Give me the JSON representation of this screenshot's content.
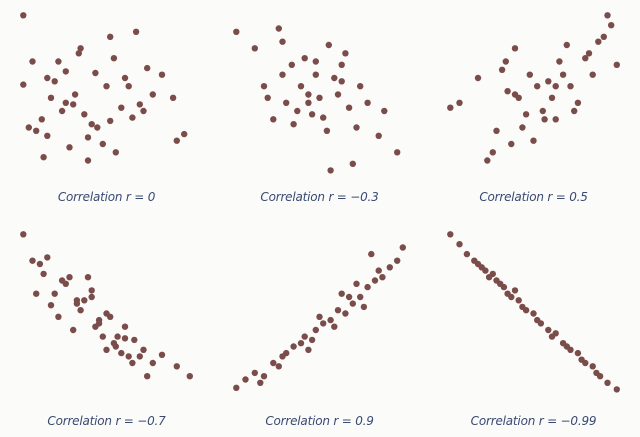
{
  "chart_data": [
    {
      "type": "scatter",
      "caption": "Correlation r = 0",
      "dot_color": "#7a4d4a",
      "x": [
        0.05,
        0.18,
        0.35,
        0.52,
        0.7,
        0.88,
        0.4,
        0.62,
        0.1,
        0.28,
        0.45,
        0.8,
        0.15,
        0.33,
        0.58,
        0.92,
        0.05,
        0.24,
        0.48,
        0.68,
        0.12,
        0.38,
        0.55,
        0.75,
        0.2,
        0.42,
        0.6,
        0.3,
        0.5,
        0.72,
        0.16,
        0.26,
        0.36,
        0.64,
        0.18,
        0.44,
        0.86,
        0.08,
        0.32,
        0.54,
        0.22,
        0.4,
        0.66,
        0.28,
        0.52
      ],
      "y": [
        0.98,
        0.6,
        0.75,
        0.85,
        0.4,
        0.22,
        0.1,
        0.55,
        0.7,
        0.45,
        0.3,
        0.62,
        0.35,
        0.5,
        0.42,
        0.26,
        0.56,
        0.7,
        0.2,
        0.44,
        0.28,
        0.38,
        0.15,
        0.5,
        0.48,
        0.32,
        0.6,
        0.18,
        0.55,
        0.66,
        0.12,
        0.4,
        0.78,
        0.36,
        0.25,
        0.63,
        0.48,
        0.3,
        0.44,
        0.72,
        0.58,
        0.24,
        0.88,
        0.64,
        0.34
      ]
    },
    {
      "type": "scatter",
      "caption": "Correlation r = −0.3",
      "dot_color": "#7a4d4a",
      "x": [
        0.05,
        0.15,
        0.28,
        0.3,
        0.42,
        0.55,
        0.62,
        0.72,
        0.85,
        0.92,
        0.2,
        0.35,
        0.48,
        0.6,
        0.38,
        0.5,
        0.66,
        0.25,
        0.44,
        0.58,
        0.7,
        0.32,
        0.46,
        0.54,
        0.4,
        0.64,
        0.76,
        0.22,
        0.36,
        0.52,
        0.48,
        0.82,
        0.68,
        0.56,
        0.3,
        0.62,
        0.44
      ],
      "y": [
        0.88,
        0.78,
        0.9,
        0.62,
        0.72,
        0.8,
        0.68,
        0.55,
        0.4,
        0.15,
        0.55,
        0.68,
        0.62,
        0.5,
        0.4,
        0.48,
        0.42,
        0.35,
        0.5,
        0.6,
        0.3,
        0.45,
        0.38,
        0.28,
        0.55,
        0.75,
        0.45,
        0.48,
        0.32,
        0.36,
        0.7,
        0.25,
        0.08,
        0.04,
        0.82,
        0.58,
        0.45
      ]
    },
    {
      "type": "scatter",
      "caption": "Correlation r = 0.5",
      "dot_color": "#7a4d4a",
      "x": [
        0.05,
        0.1,
        0.2,
        0.3,
        0.35,
        0.4,
        0.48,
        0.55,
        0.62,
        0.7,
        0.78,
        0.85,
        0.92,
        0.95,
        0.25,
        0.38,
        0.44,
        0.52,
        0.6,
        0.66,
        0.72,
        0.8,
        0.88,
        0.33,
        0.42,
        0.5,
        0.58,
        0.64,
        0.74,
        0.28,
        0.46,
        0.56,
        0.82,
        0.9,
        0.4,
        0.62,
        0.68,
        0.36
      ],
      "y": [
        0.42,
        0.45,
        0.6,
        0.28,
        0.7,
        0.5,
        0.62,
        0.4,
        0.35,
        0.55,
        0.72,
        0.82,
        0.92,
        0.68,
        0.1,
        0.2,
        0.3,
        0.55,
        0.48,
        0.62,
        0.4,
        0.75,
        0.85,
        0.65,
        0.48,
        0.22,
        0.58,
        0.7,
        0.45,
        0.15,
        0.38,
        0.35,
        0.62,
        0.98,
        0.78,
        0.55,
        0.8,
        0.52
      ]
    },
    {
      "type": "scatter",
      "caption": "Correlation r = −0.7",
      "dot_color": "#7a4d4a",
      "x": [
        0.05,
        0.1,
        0.14,
        0.18,
        0.22,
        0.26,
        0.3,
        0.34,
        0.38,
        0.42,
        0.46,
        0.5,
        0.55,
        0.6,
        0.65,
        0.7,
        0.75,
        0.8,
        0.88,
        0.95,
        0.12,
        0.2,
        0.28,
        0.32,
        0.36,
        0.44,
        0.48,
        0.52,
        0.58,
        0.62,
        0.4,
        0.56,
        0.64,
        0.72,
        0.16,
        0.24,
        0.46,
        0.54,
        0.68,
        0.34,
        0.42,
        0.5,
        0.6
      ],
      "y": [
        0.98,
        0.82,
        0.8,
        0.84,
        0.62,
        0.7,
        0.72,
        0.56,
        0.58,
        0.6,
        0.46,
        0.5,
        0.3,
        0.42,
        0.34,
        0.28,
        0.2,
        0.25,
        0.18,
        0.12,
        0.62,
        0.55,
        0.68,
        0.4,
        0.52,
        0.42,
        0.36,
        0.48,
        0.26,
        0.24,
        0.72,
        0.36,
        0.2,
        0.12,
        0.74,
        0.48,
        0.44,
        0.32,
        0.24,
        0.58,
        0.64,
        0.28,
        0.35
      ]
    },
    {
      "type": "scatter",
      "caption": "Correlation r = 0.9",
      "dot_color": "#7a4d4a",
      "x": [
        0.05,
        0.1,
        0.15,
        0.2,
        0.25,
        0.28,
        0.32,
        0.36,
        0.4,
        0.44,
        0.48,
        0.52,
        0.56,
        0.6,
        0.64,
        0.68,
        0.72,
        0.76,
        0.8,
        0.84,
        0.88,
        0.92,
        0.95,
        0.18,
        0.3,
        0.42,
        0.5,
        0.58,
        0.66,
        0.74,
        0.82,
        0.46,
        0.62,
        0.7,
        0.78
      ],
      "y": [
        0.05,
        0.1,
        0.14,
        0.12,
        0.2,
        0.18,
        0.26,
        0.3,
        0.32,
        0.28,
        0.4,
        0.44,
        0.46,
        0.52,
        0.5,
        0.56,
        0.6,
        0.66,
        0.7,
        0.72,
        0.78,
        0.82,
        0.9,
        0.08,
        0.24,
        0.36,
        0.48,
        0.42,
        0.6,
        0.54,
        0.76,
        0.34,
        0.62,
        0.68,
        0.86
      ]
    },
    {
      "type": "scatter",
      "caption": "Correlation r = −0.99",
      "dot_color": "#7a4d4a",
      "x": [
        0.05,
        0.1,
        0.14,
        0.18,
        0.22,
        0.26,
        0.3,
        0.34,
        0.38,
        0.42,
        0.46,
        0.5,
        0.54,
        0.58,
        0.62,
        0.66,
        0.7,
        0.74,
        0.78,
        0.82,
        0.86,
        0.9,
        0.95,
        0.2,
        0.28,
        0.36,
        0.44,
        0.52,
        0.6,
        0.68,
        0.76,
        0.84,
        0.24,
        0.32,
        0.4
      ],
      "y": [
        0.98,
        0.92,
        0.86,
        0.82,
        0.78,
        0.72,
        0.7,
        0.66,
        0.6,
        0.58,
        0.52,
        0.5,
        0.44,
        0.4,
        0.38,
        0.32,
        0.28,
        0.26,
        0.2,
        0.18,
        0.12,
        0.08,
        0.04,
        0.8,
        0.74,
        0.62,
        0.54,
        0.46,
        0.36,
        0.3,
        0.22,
        0.14,
        0.76,
        0.68,
        0.64
      ]
    }
  ]
}
